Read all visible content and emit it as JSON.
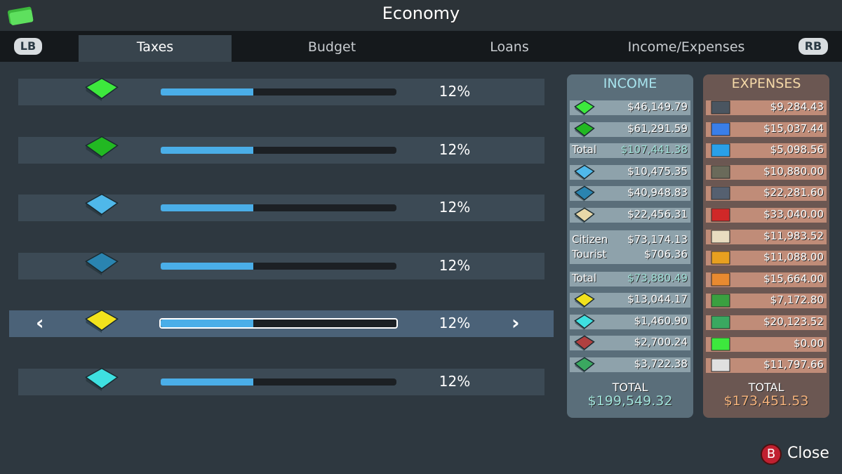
{
  "header": {
    "title": "Economy"
  },
  "tabs": {
    "left_button": "LB",
    "right_button": "RB",
    "items": [
      "Taxes",
      "Budget",
      "Loans",
      "Income/Expenses"
    ],
    "active": 0
  },
  "taxes": {
    "rows": [
      {
        "rate": "12%",
        "icon_color": "#3de83d"
      },
      {
        "rate": "12%",
        "icon_color": "#22b822"
      },
      {
        "rate": "12%",
        "icon_color": "#4fb8ea"
      },
      {
        "rate": "12%",
        "icon_color": "#2a84b0"
      },
      {
        "rate": "12%",
        "icon_color": "#f2e21c"
      },
      {
        "rate": "12%",
        "icon_color": "#3ee0e0"
      }
    ],
    "selected": 4
  },
  "income": {
    "title": "INCOME",
    "rows": [
      {
        "value": "$46,149.79",
        "icon_color": "#3de83d"
      },
      {
        "value": "$61,291.59",
        "icon_color": "#22b822"
      },
      {
        "label": "Total",
        "value": "$107,441.38"
      },
      {
        "value": "$10,475.35",
        "icon_color": "#4fb8ea"
      },
      {
        "value": "$40,948.83",
        "icon_color": "#2a84b0"
      },
      {
        "value": "$22,456.31",
        "icon_color": "#e8d8a8"
      },
      {
        "lines": [
          {
            "label": "Citizen",
            "value": "$73,174.13"
          },
          {
            "label": "Tourist",
            "value": "$706.36"
          }
        ]
      },
      {
        "label": "Total",
        "value": "$73,880.49"
      },
      {
        "value": "$13,044.17",
        "icon_color": "#f2e21c"
      },
      {
        "value": "$1,460.90",
        "icon_color": "#3ee0e0"
      },
      {
        "value": "$2,700.24",
        "icon_color": "#b04040"
      },
      {
        "value": "$3,722.38",
        "icon_color": "#3aa860"
      }
    ],
    "total_label": "TOTAL",
    "total": "$199,549.32"
  },
  "expenses": {
    "title": "EXPENSES",
    "rows": [
      {
        "value": "$9,284.43",
        "icon_color": "#4a5560"
      },
      {
        "value": "$15,037.44",
        "icon_color": "#3a7ee8"
      },
      {
        "value": "$5,098.56",
        "icon_color": "#2aa0e8"
      },
      {
        "value": "$10,880.00",
        "icon_color": "#6a6a5a"
      },
      {
        "value": "$22,281.60",
        "icon_color": "#556070"
      },
      {
        "value": "$33,040.00",
        "icon_color": "#d02828"
      },
      {
        "value": "$11,983.52",
        "icon_color": "#e8dcc0"
      },
      {
        "value": "$11,088.00",
        "icon_color": "#e8a020"
      },
      {
        "value": "$15,664.00",
        "icon_color": "#e88a30"
      },
      {
        "value": "$7,172.80",
        "icon_color": "#3aa040"
      },
      {
        "value": "$20,123.52",
        "icon_color": "#3aa860"
      },
      {
        "value": "$0.00",
        "icon_color": "#3de83d"
      },
      {
        "value": "$11,797.66",
        "icon_color": "#e0e0e0"
      }
    ],
    "total_label": "TOTAL",
    "total": "$173,451.53"
  },
  "close": {
    "button": "B",
    "label": "Close"
  }
}
